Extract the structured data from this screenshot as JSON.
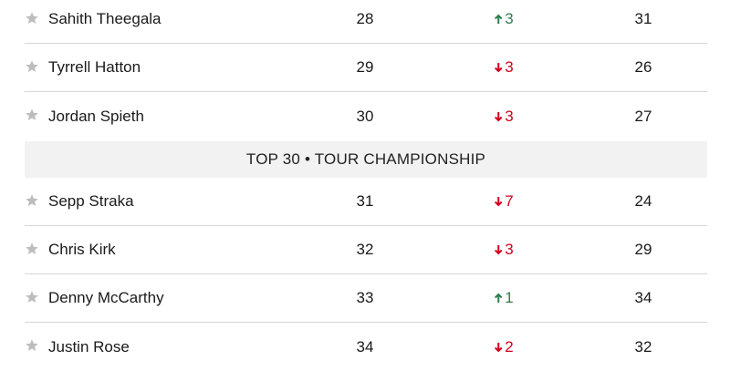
{
  "table": {
    "columns_settings": {
      "up_color": "#2f7d4f",
      "down_color": "#d0021b"
    },
    "rows": [
      {
        "player": "Sahith Theegala",
        "rank": 28,
        "move": 3,
        "direction": "up",
        "previous": 31
      },
      {
        "player": "Tyrrell Hatton",
        "rank": 29,
        "move": 3,
        "direction": "down",
        "previous": 26
      },
      {
        "player": "Jordan Spieth",
        "rank": 30,
        "move": 3,
        "direction": "down",
        "previous": 27
      },
      {
        "banner": "TOP 30 • TOUR CHAMPIONSHIP"
      },
      {
        "player": "Sepp Straka",
        "rank": 31,
        "move": 7,
        "direction": "down",
        "previous": 24
      },
      {
        "player": "Chris Kirk",
        "rank": 32,
        "move": 3,
        "direction": "down",
        "previous": 29
      },
      {
        "player": "Denny McCarthy",
        "rank": 33,
        "move": 1,
        "direction": "up",
        "previous": 34
      },
      {
        "player": "Justin Rose",
        "rank": 34,
        "move": 2,
        "direction": "down",
        "previous": 32
      }
    ]
  }
}
